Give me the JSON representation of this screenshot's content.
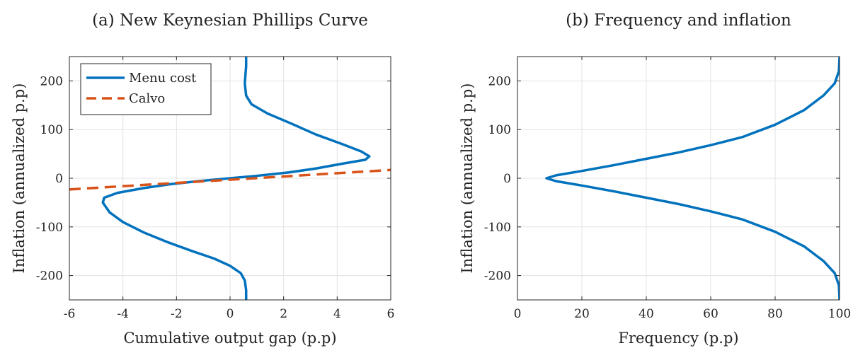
{
  "chart_data": [
    {
      "type": "line",
      "title": "(a) New Keynesian Phillips Curve",
      "xlabel": "Cumulative output gap (p.p)",
      "ylabel": "Inflation (annualized p.p)",
      "xlim": [
        -6,
        6
      ],
      "ylim": [
        -250,
        250
      ],
      "xticks": [
        "-6",
        "-4",
        "-2",
        "0",
        "2",
        "4",
        "6"
      ],
      "yticks": [
        "-200",
        "-100",
        "0",
        "100",
        "200"
      ],
      "grid": true,
      "legend": "top-left",
      "series": [
        {
          "name": "Menu cost",
          "color": "#0072BD",
          "style": "solid",
          "points": [
            [
              0.6,
              -250
            ],
            [
              0.6,
              -230
            ],
            [
              0.55,
              -210
            ],
            [
              0.4,
              -195
            ],
            [
              0.0,
              -180
            ],
            [
              -0.6,
              -165
            ],
            [
              -1.4,
              -150
            ],
            [
              -2.3,
              -132
            ],
            [
              -3.2,
              -112
            ],
            [
              -4.0,
              -90
            ],
            [
              -4.5,
              -70
            ],
            [
              -4.75,
              -50
            ],
            [
              -4.7,
              -40
            ],
            [
              -4.2,
              -30
            ],
            [
              -3.2,
              -20
            ],
            [
              -2.2,
              -12
            ],
            [
              -1.0,
              -5
            ],
            [
              0.0,
              0
            ],
            [
              1.0,
              5
            ],
            [
              2.2,
              12
            ],
            [
              3.2,
              20
            ],
            [
              4.2,
              30
            ],
            [
              5.05,
              38
            ],
            [
              5.2,
              45
            ],
            [
              4.9,
              55
            ],
            [
              4.2,
              70
            ],
            [
              3.2,
              90
            ],
            [
              2.3,
              112
            ],
            [
              1.4,
              133
            ],
            [
              0.8,
              152
            ],
            [
              0.6,
              170
            ],
            [
              0.55,
              195
            ],
            [
              0.6,
              230
            ],
            [
              0.6,
              250
            ]
          ]
        },
        {
          "name": "Calvo",
          "color": "#D95319",
          "style": "dashed",
          "points": [
            [
              -6,
              -23
            ],
            [
              6,
              17
            ]
          ]
        }
      ]
    },
    {
      "type": "line",
      "title": "(b) Frequency and inflation",
      "xlabel": "Frequency (p.p)",
      "ylabel": "Inflation (annualized p.p)",
      "xlim": [
        0,
        100
      ],
      "ylim": [
        -250,
        250
      ],
      "xticks": [
        "0",
        "20",
        "40",
        "60",
        "80",
        "100"
      ],
      "yticks": [
        "-200",
        "-100",
        "0",
        "100",
        "200"
      ],
      "grid": true,
      "series": [
        {
          "color": "#0072BD",
          "style": "solid",
          "points": [
            [
              100,
              -250
            ],
            [
              99.8,
              -220
            ],
            [
              98.5,
              -195
            ],
            [
              95,
              -170
            ],
            [
              89,
              -140
            ],
            [
              80,
              -110
            ],
            [
              70,
              -85
            ],
            [
              60,
              -68
            ],
            [
              50,
              -53
            ],
            [
              40,
              -40
            ],
            [
              30,
              -27
            ],
            [
              20,
              -15
            ],
            [
              12,
              -6
            ],
            [
              9,
              0
            ],
            [
              12,
              6
            ],
            [
              20,
              15
            ],
            [
              30,
              27
            ],
            [
              40,
              40
            ],
            [
              50,
              53
            ],
            [
              60,
              68
            ],
            [
              70,
              85
            ],
            [
              80,
              110
            ],
            [
              89,
              140
            ],
            [
              95,
              170
            ],
            [
              98.5,
              195
            ],
            [
              99.8,
              220
            ],
            [
              100,
              250
            ]
          ]
        }
      ]
    }
  ]
}
